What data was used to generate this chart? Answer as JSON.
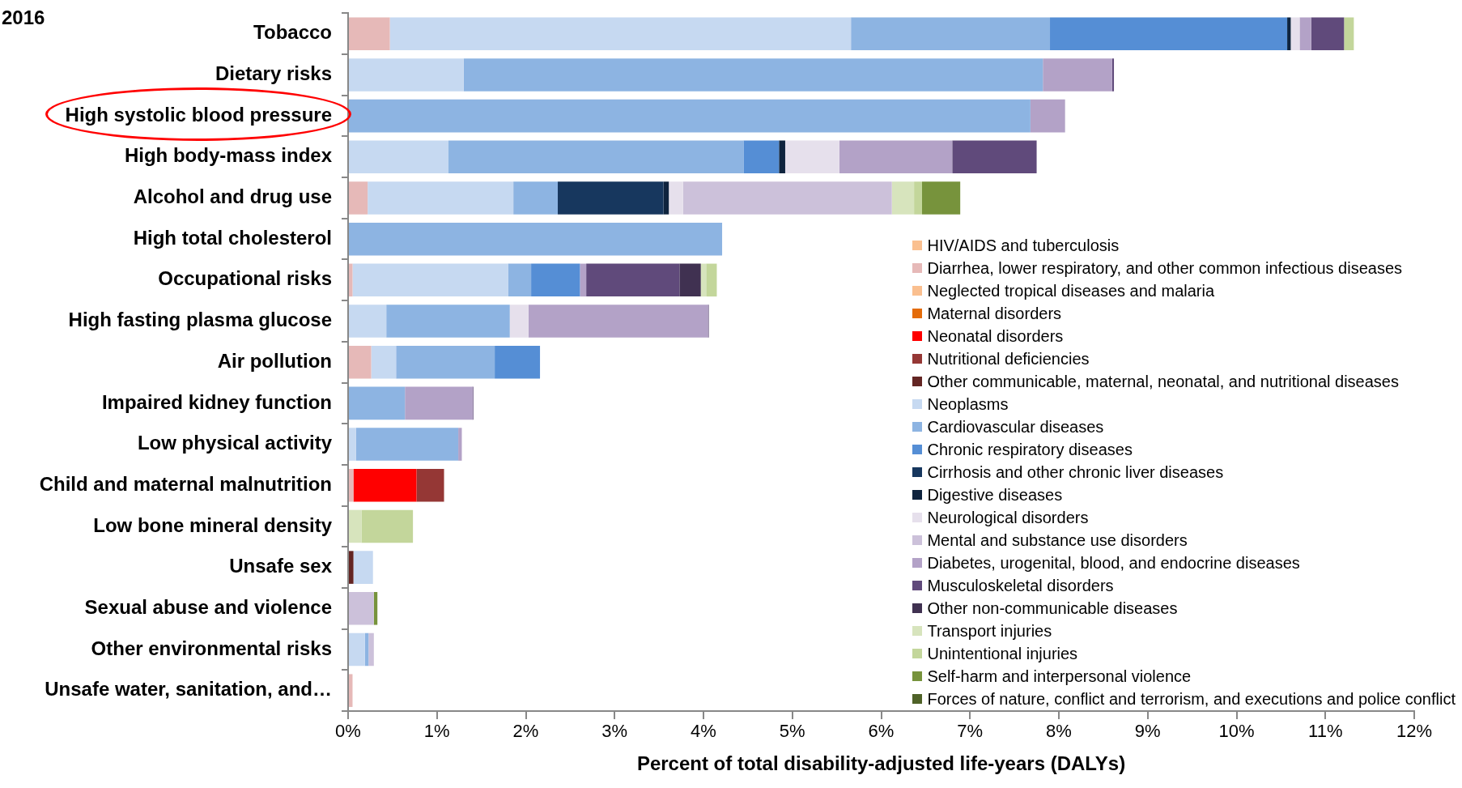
{
  "chart_data": {
    "type": "bar",
    "orientation": "horizontal",
    "stacked": true,
    "title": "2016",
    "xlabel": "Percent of total disability-adjusted life-years (DALYs)",
    "categories": [
      "Tobacco",
      "Dietary risks",
      "High systolic blood pressure",
      "High body-mass index",
      "Alcohol and drug use",
      "High total cholesterol",
      "Occupational risks",
      "High fasting plasma glucose",
      "Air pollution",
      "Impaired kidney function",
      "Low physical activity",
      "Child and maternal malnutrition",
      "Low bone mineral density",
      "Unsafe sex",
      "Sexual abuse and violence",
      "Other environmental risks",
      "Unsafe water, sanitation, and…"
    ],
    "xlim": [
      0,
      12
    ],
    "xticks": [
      {
        "value": 0,
        "label": "0%"
      },
      {
        "value": 1,
        "label": "1%"
      },
      {
        "value": 2,
        "label": "2%"
      },
      {
        "value": 3,
        "label": "3%"
      },
      {
        "value": 4,
        "label": "4%"
      },
      {
        "value": 5,
        "label": "5%"
      },
      {
        "value": 6,
        "label": "6%"
      },
      {
        "value": 7,
        "label": "7%"
      },
      {
        "value": 8,
        "label": "8%"
      },
      {
        "value": 9,
        "label": "9%"
      },
      {
        "value": 10,
        "label": "10%"
      },
      {
        "value": 11,
        "label": "11%"
      },
      {
        "value": 12,
        "label": "12%"
      }
    ],
    "grid": false,
    "legend": "bottom right",
    "series": [
      {
        "name": "HIV/AIDS and tuberculosis",
        "color": "#fac090",
        "values": [
          null,
          null,
          null,
          null,
          null,
          null,
          null,
          null,
          null,
          null,
          null,
          null,
          null,
          null,
          null,
          null,
          null
        ]
      },
      {
        "name": "Diarrhea, lower respiratory, and other common infectious diseases",
        "color": "#e6b9b8",
        "values": [
          0.47,
          null,
          null,
          null,
          0.22,
          null,
          0.05,
          null,
          0.26,
          null,
          null,
          0.06,
          null,
          null,
          null,
          null,
          0.05
        ]
      },
      {
        "name": "Neglected tropical diseases and malaria",
        "color": "#fabf8f",
        "values": [
          null,
          null,
          null,
          null,
          null,
          null,
          null,
          null,
          null,
          null,
          null,
          null,
          null,
          null,
          null,
          null,
          null
        ]
      },
      {
        "name": "Maternal disorders",
        "color": "#e46c0a",
        "values": [
          null,
          null,
          null,
          null,
          null,
          null,
          null,
          null,
          null,
          null,
          null,
          null,
          null,
          null,
          null,
          null,
          null
        ]
      },
      {
        "name": "Neonatal disorders",
        "color": "#ff0000",
        "values": [
          null,
          null,
          null,
          null,
          null,
          null,
          null,
          null,
          null,
          null,
          null,
          0.71,
          null,
          null,
          null,
          null,
          null
        ]
      },
      {
        "name": "Nutritional deficiencies",
        "color": "#953735",
        "values": [
          null,
          null,
          null,
          null,
          null,
          null,
          null,
          null,
          null,
          null,
          null,
          0.31,
          null,
          null,
          null,
          null,
          null
        ]
      },
      {
        "name": "Other communicable, maternal, neonatal, and nutritional diseases",
        "color": "#632523",
        "values": [
          null,
          null,
          null,
          null,
          null,
          null,
          null,
          null,
          null,
          null,
          null,
          null,
          null,
          0.06,
          null,
          null,
          null
        ]
      },
      {
        "name": "Neoplasms",
        "color": "#c6d9f1",
        "values": [
          5.19,
          1.3,
          null,
          1.13,
          1.64,
          null,
          1.75,
          0.43,
          0.28,
          null,
          0.09,
          null,
          null,
          0.22,
          null,
          0.19,
          null
        ]
      },
      {
        "name": "Cardiovascular diseases",
        "color": "#8db4e2",
        "values": [
          2.24,
          6.52,
          7.68,
          3.32,
          0.5,
          4.21,
          0.26,
          1.39,
          1.11,
          0.64,
          1.15,
          null,
          null,
          null,
          null,
          0.04,
          null
        ]
      },
      {
        "name": "Chronic respiratory diseases",
        "color": "#558ed5",
        "values": [
          2.67,
          null,
          null,
          0.4,
          null,
          null,
          0.55,
          null,
          0.51,
          null,
          null,
          null,
          null,
          null,
          null,
          null,
          null
        ]
      },
      {
        "name": "Cirrhosis and other chronic liver diseases",
        "color": "#17375e",
        "values": [
          null,
          null,
          null,
          null,
          1.19,
          null,
          null,
          null,
          null,
          null,
          null,
          null,
          null,
          null,
          null,
          null,
          null
        ]
      },
      {
        "name": "Digestive diseases",
        "color": "#0f243e",
        "values": [
          0.04,
          null,
          null,
          0.07,
          0.06,
          null,
          null,
          null,
          null,
          null,
          null,
          null,
          null,
          null,
          null,
          null,
          null
        ]
      },
      {
        "name": "Neurological disorders",
        "color": "#e6e0ec",
        "values": [
          0.1,
          null,
          null,
          0.61,
          0.16,
          null,
          null,
          0.21,
          null,
          null,
          null,
          null,
          null,
          null,
          null,
          null,
          null
        ]
      },
      {
        "name": "Mental and substance use disorders",
        "color": "#ccc1da",
        "values": [
          null,
          null,
          null,
          null,
          2.35,
          null,
          null,
          null,
          null,
          null,
          null,
          null,
          null,
          null,
          0.29,
          0.06,
          null
        ]
      },
      {
        "name": "Diabetes, urogenital, blood, and endocrine diseases",
        "color": "#b3a2c7",
        "values": [
          0.13,
          0.78,
          0.39,
          1.27,
          null,
          null,
          0.07,
          2.02,
          null,
          0.76,
          0.04,
          null,
          null,
          null,
          null,
          null,
          null
        ]
      },
      {
        "name": "Musculoskeletal disorders",
        "color": "#604a7b",
        "values": [
          0.37,
          0.02,
          null,
          0.95,
          null,
          null,
          1.05,
          0.01,
          null,
          0.01,
          null,
          null,
          null,
          null,
          null,
          null,
          null
        ]
      },
      {
        "name": "Other non-communicable diseases",
        "color": "#403151",
        "values": [
          null,
          null,
          null,
          null,
          null,
          null,
          0.24,
          null,
          null,
          null,
          null,
          null,
          null,
          null,
          null,
          null,
          null
        ]
      },
      {
        "name": "Transport injuries",
        "color": "#d7e4bd",
        "values": [
          null,
          null,
          null,
          null,
          0.25,
          null,
          0.06,
          null,
          null,
          null,
          null,
          null,
          0.15,
          null,
          null,
          null,
          null
        ]
      },
      {
        "name": "Unintentional injuries",
        "color": "#c3d69b",
        "values": [
          0.11,
          null,
          null,
          null,
          0.09,
          null,
          0.12,
          null,
          null,
          null,
          null,
          null,
          0.58,
          null,
          null,
          null,
          null
        ]
      },
      {
        "name": "Self-harm and interpersonal violence",
        "color": "#77933c",
        "values": [
          null,
          null,
          null,
          null,
          0.43,
          null,
          null,
          null,
          null,
          null,
          null,
          null,
          null,
          null,
          0.04,
          null,
          null
        ]
      },
      {
        "name": "Forces of nature, conflict and terrorism, and executions and police conflict",
        "color": "#4f6228",
        "values": [
          null,
          null,
          null,
          null,
          null,
          null,
          null,
          null,
          null,
          null,
          null,
          null,
          null,
          null,
          null,
          null,
          null
        ]
      }
    ]
  }
}
